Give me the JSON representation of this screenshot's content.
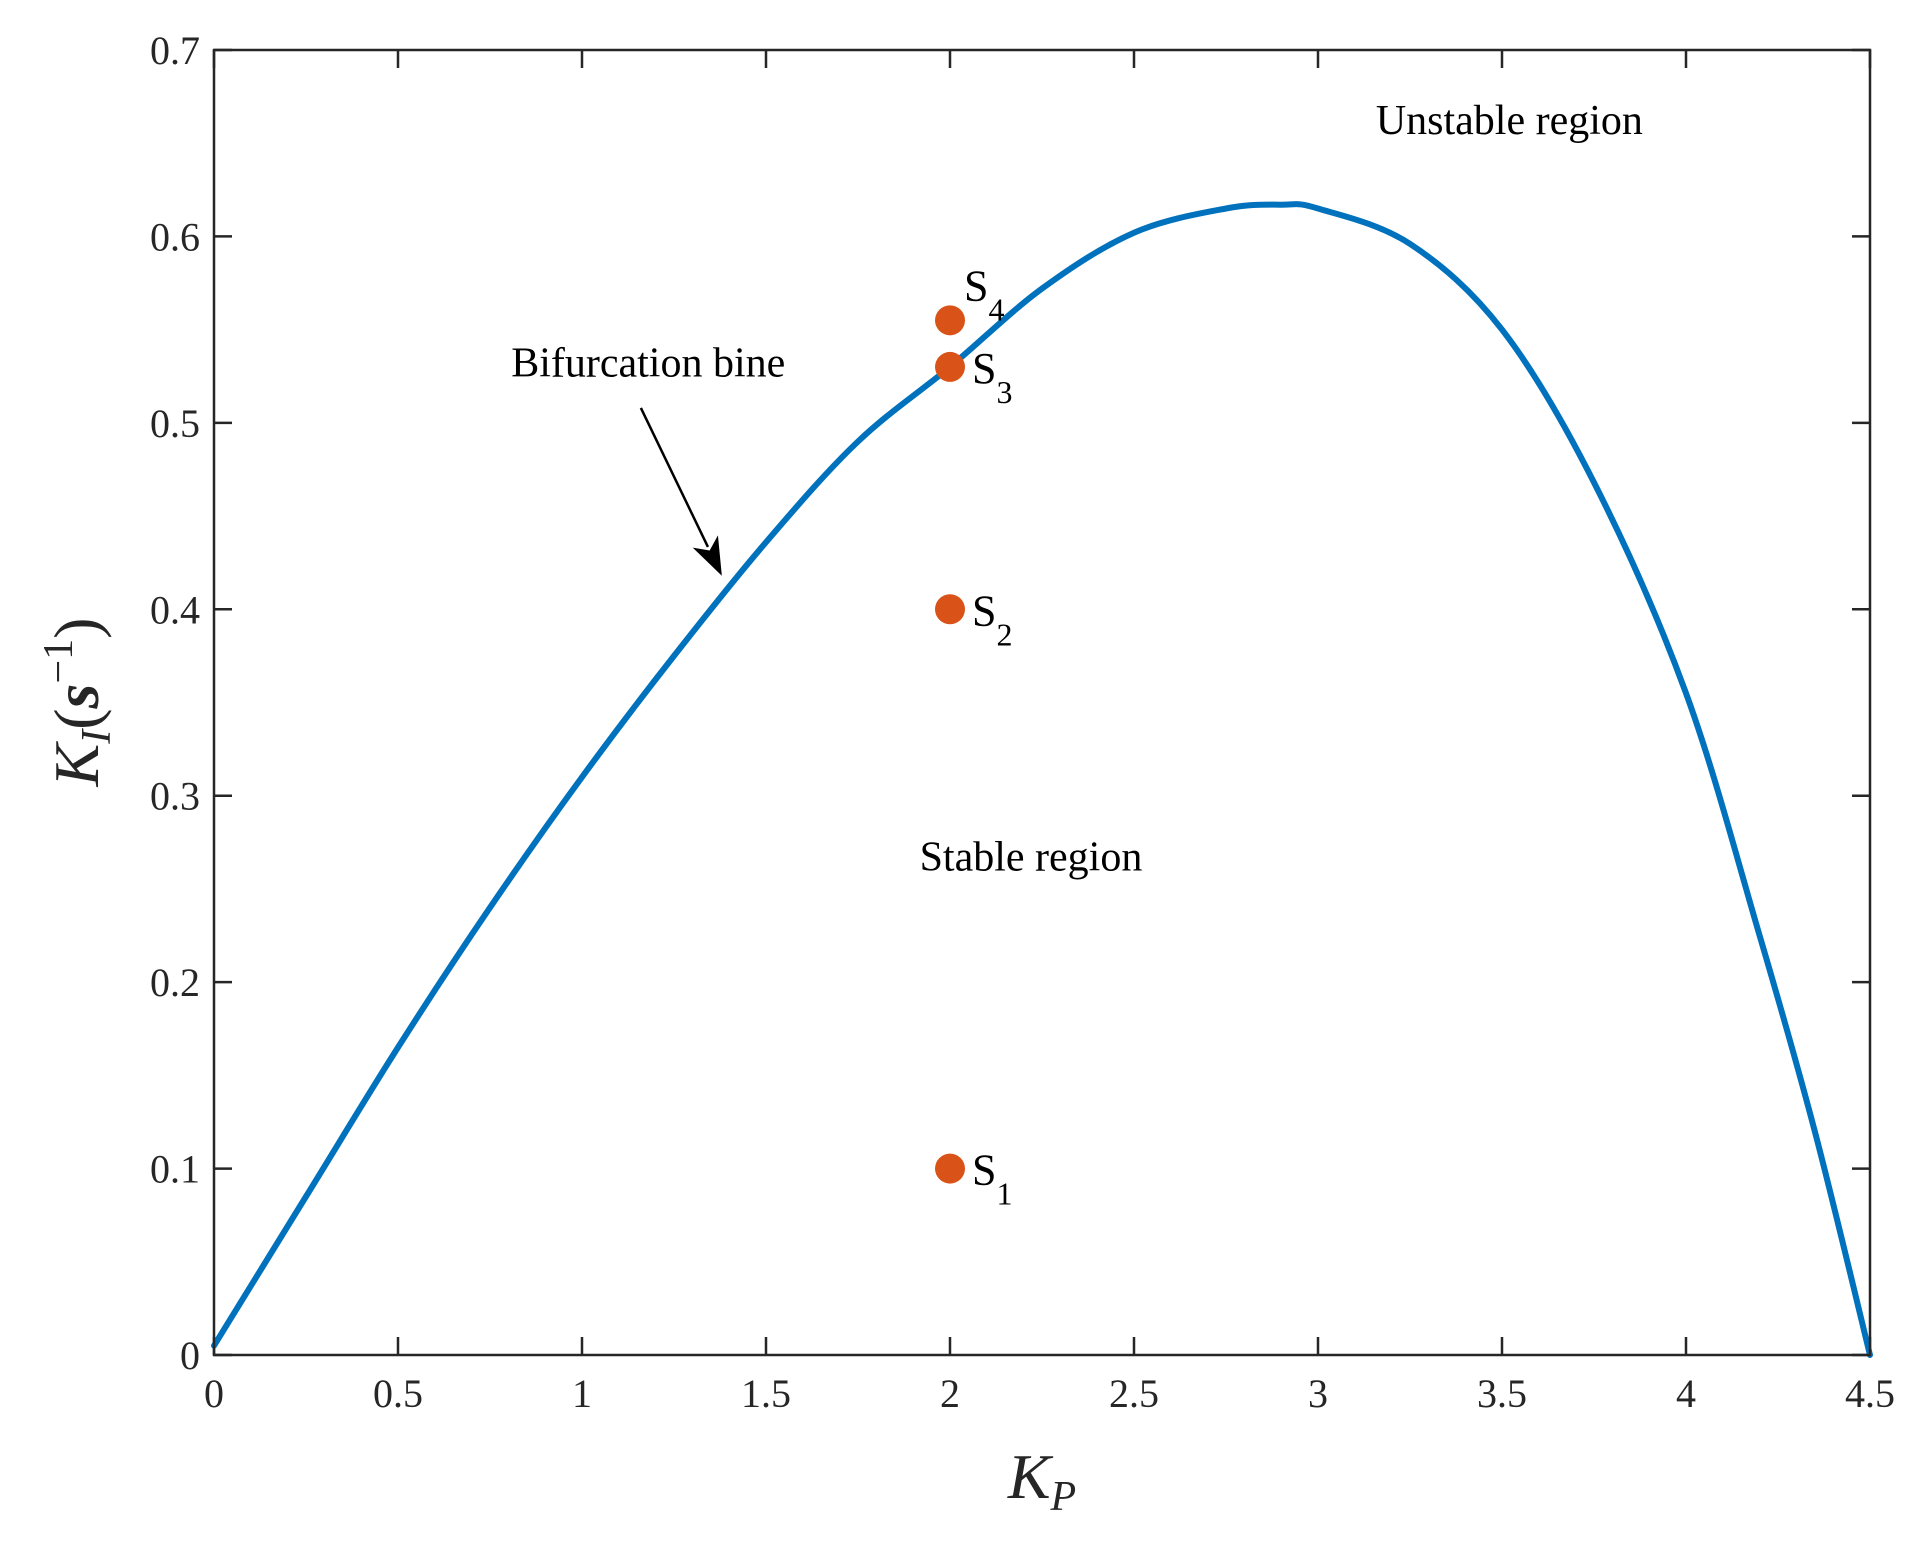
{
  "chart_data": {
    "type": "line",
    "title": "",
    "xlabel": {
      "main": "K",
      "sub": "P"
    },
    "ylabel": {
      "main": "K",
      "sub": "I",
      "paren_open": "(",
      "unit": "s",
      "sup": "−1",
      "paren_close": ")"
    },
    "xlim": [
      0,
      4.5
    ],
    "ylim": [
      0,
      0.7
    ],
    "xticks": [
      0,
      0.5,
      1,
      1.5,
      2,
      2.5,
      3,
      3.5,
      4,
      4.5
    ],
    "xtick_labels": [
      "0",
      "0.5",
      "1",
      "1.5",
      "2",
      "2.5",
      "3",
      "3.5",
      "4",
      "4.5"
    ],
    "yticks": [
      0,
      0.1,
      0.2,
      0.3,
      0.4,
      0.5,
      0.6,
      0.7
    ],
    "ytick_labels": [
      "0",
      "0.1",
      "0.2",
      "0.3",
      "0.4",
      "0.5",
      "0.6",
      "0.7"
    ],
    "grid": false,
    "series": [
      {
        "name": "Bifurcation bine",
        "color": "#0072BD",
        "x": [
          0,
          0.25,
          0.5,
          0.75,
          1.0,
          1.25,
          1.5,
          1.75,
          2.0,
          2.25,
          2.5,
          2.75,
          2.9,
          3.0,
          3.25,
          3.5,
          3.75,
          4.0,
          4.2,
          4.35,
          4.5
        ],
        "y": [
          0.005,
          0.085,
          0.165,
          0.24,
          0.31,
          0.375,
          0.436,
          0.49,
          0.53,
          0.572,
          0.602,
          0.615,
          0.617,
          0.615,
          0.596,
          0.55,
          0.468,
          0.355,
          0.225,
          0.12,
          0
        ]
      }
    ],
    "points": [
      {
        "name": "S",
        "sub": "1",
        "x": 2.0,
        "y": 0.1
      },
      {
        "name": "S",
        "sub": "2",
        "x": 2.0,
        "y": 0.4
      },
      {
        "name": "S",
        "sub": "3",
        "x": 2.0,
        "y": 0.53
      },
      {
        "name": "S",
        "sub": "4",
        "x": 2.0,
        "y": 0.555
      }
    ],
    "point_color": "#D95319",
    "annotations": [
      {
        "key": "unstable",
        "text": "Unstable region",
        "x": 3.52,
        "y": 0.655
      },
      {
        "key": "stable",
        "text": "Stable region",
        "x": 2.22,
        "y": 0.26
      },
      {
        "key": "bifurcation",
        "text": "Bifurcation bine",
        "x": 1.18,
        "y": 0.525
      }
    ],
    "arrow": {
      "from": [
        1.16,
        0.508
      ],
      "to": [
        1.38,
        0.418
      ]
    }
  }
}
